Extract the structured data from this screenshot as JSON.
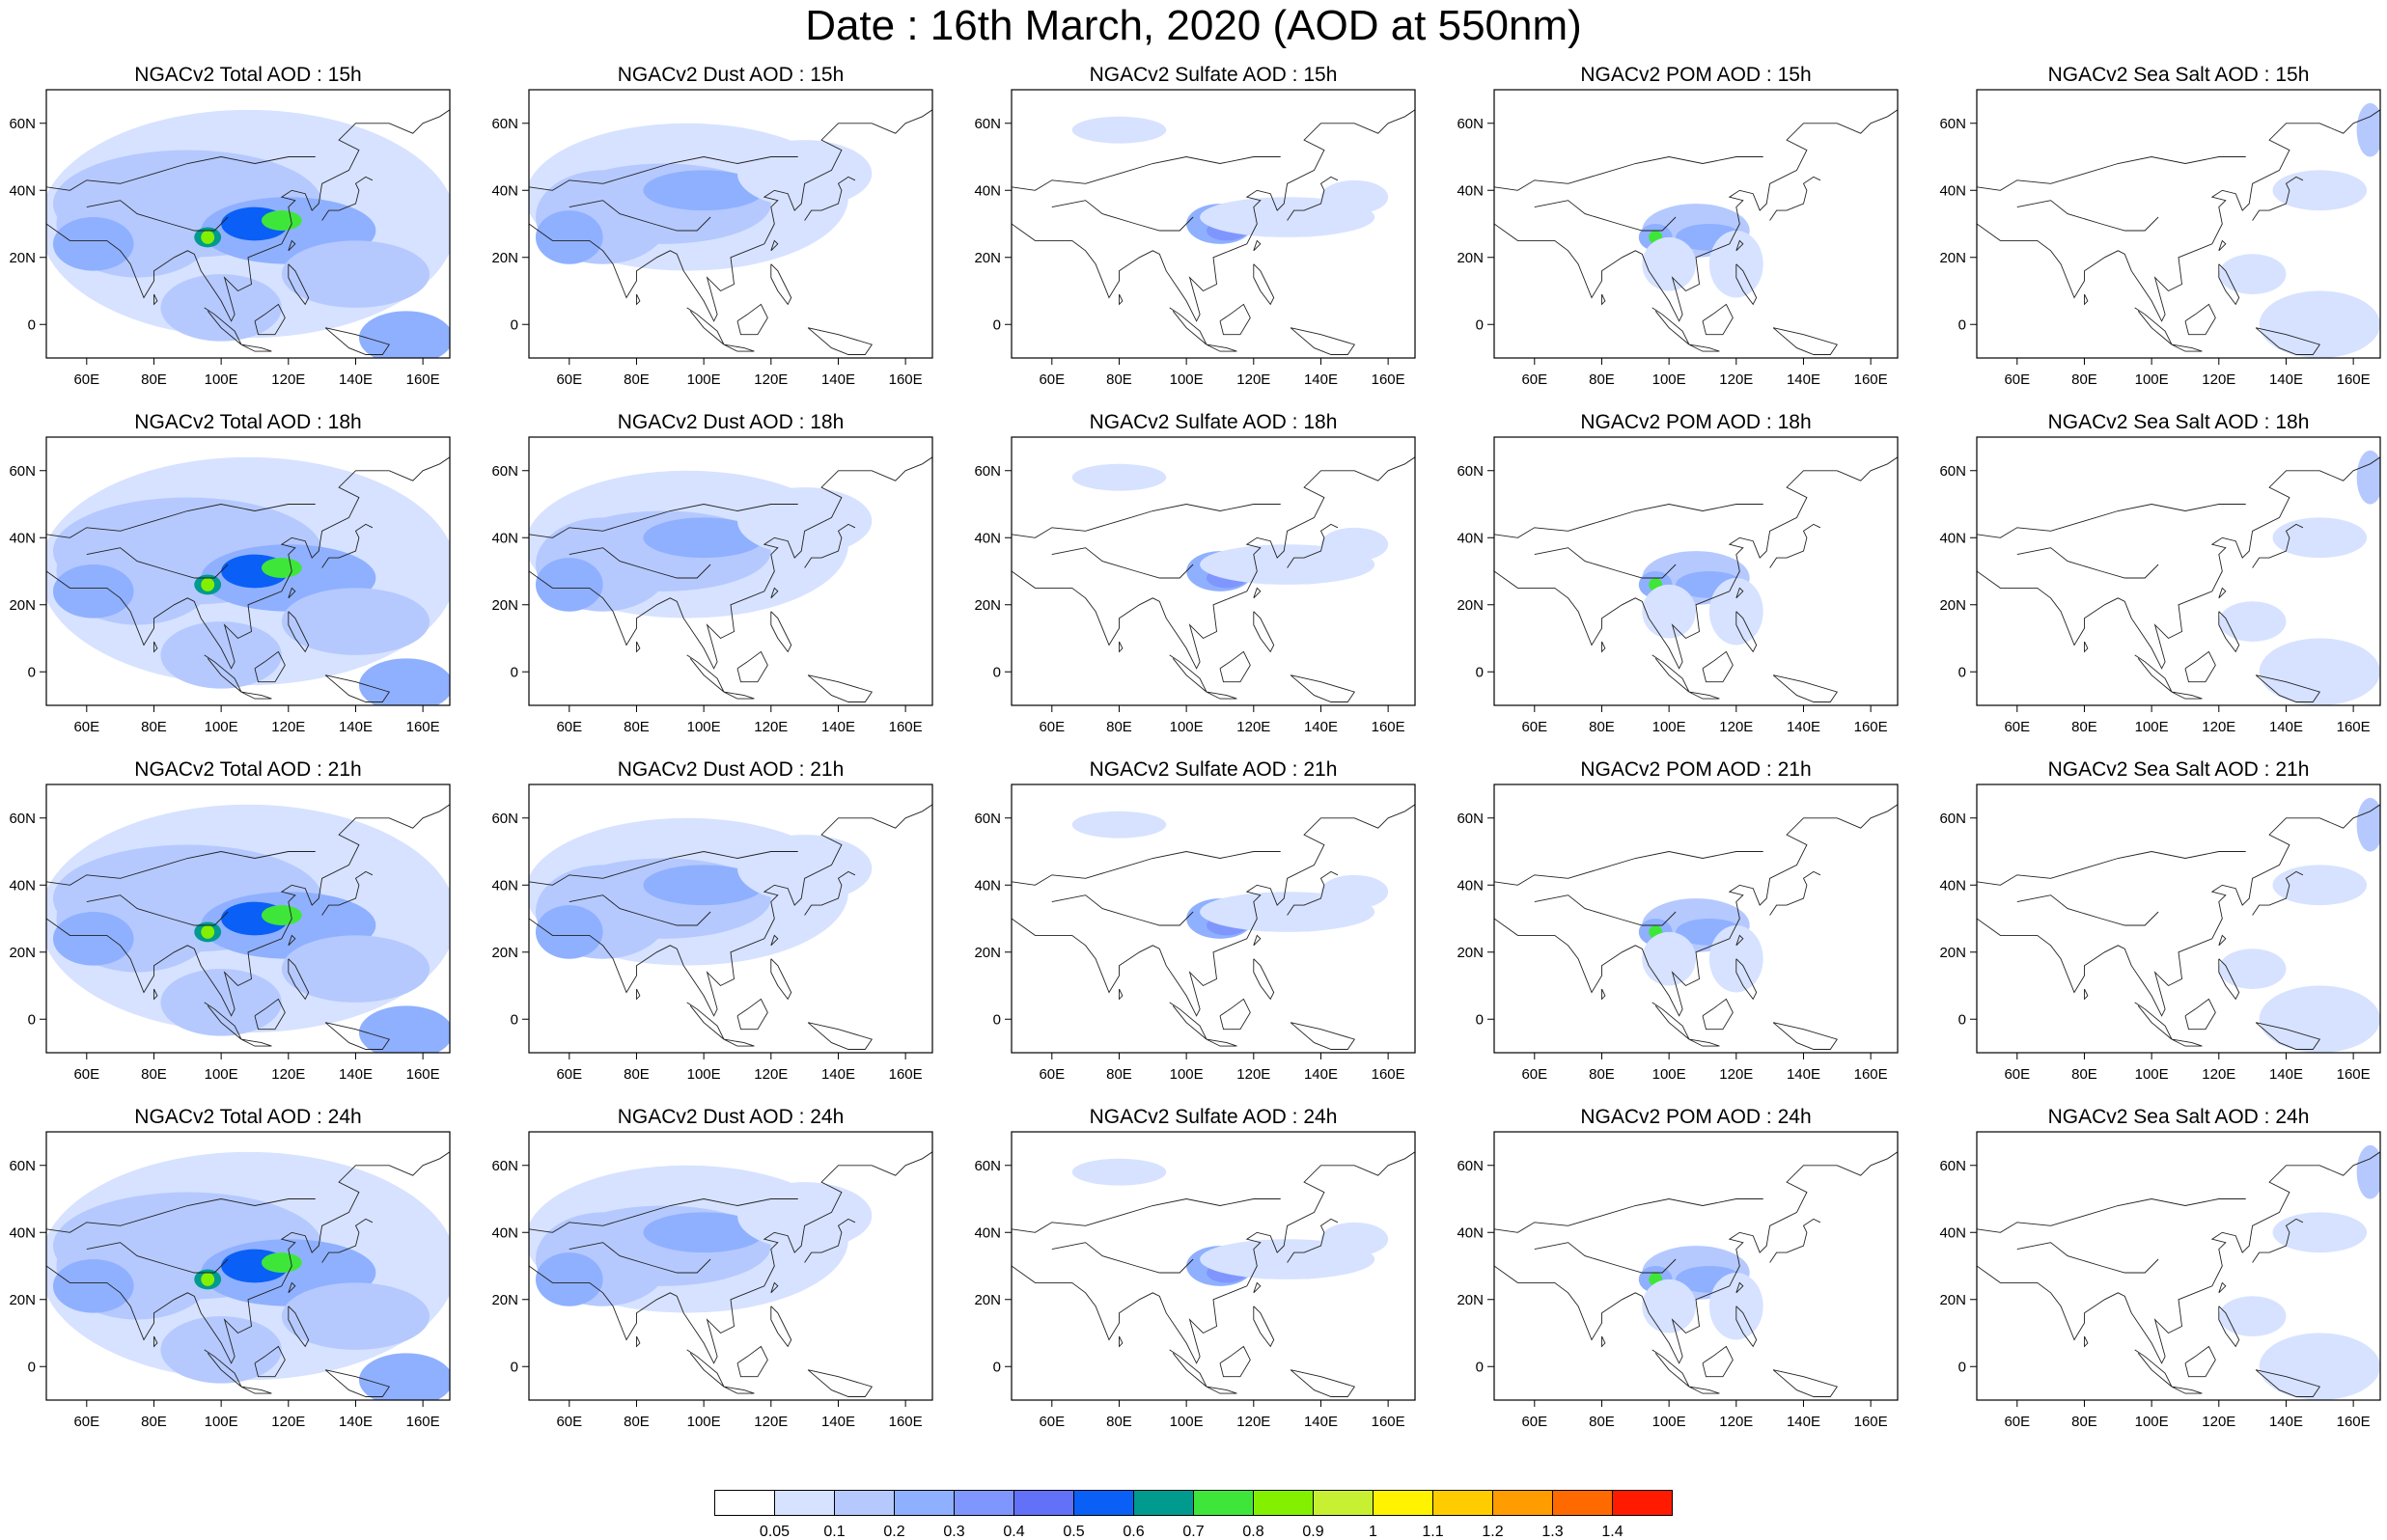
{
  "figure": {
    "title": "Date : 16th March, 2020 (AOD at 550nm)"
  },
  "axes": {
    "lon_ticks": [
      "60E",
      "80E",
      "100E",
      "120E",
      "140E",
      "160E"
    ],
    "lat_ticks": [
      "60N",
      "40N",
      "20N",
      "0"
    ]
  },
  "panels": [
    {
      "title": "NGACv2 Total AOD : 15h",
      "species": "total",
      "hour": 15
    },
    {
      "title": "NGACv2 Dust AOD : 15h",
      "species": "dust",
      "hour": 15
    },
    {
      "title": "NGACv2 Sulfate AOD : 15h",
      "species": "sulfate",
      "hour": 15
    },
    {
      "title": "NGACv2 POM AOD : 15h",
      "species": "pom",
      "hour": 15
    },
    {
      "title": "NGACv2 Sea Salt AOD : 15h",
      "species": "seasalt",
      "hour": 15
    },
    {
      "title": "NGACv2 Total AOD : 18h",
      "species": "total",
      "hour": 18
    },
    {
      "title": "NGACv2 Dust AOD : 18h",
      "species": "dust",
      "hour": 18
    },
    {
      "title": "NGACv2 Sulfate AOD : 18h",
      "species": "sulfate",
      "hour": 18
    },
    {
      "title": "NGACv2 POM AOD : 18h",
      "species": "pom",
      "hour": 18
    },
    {
      "title": "NGACv2 Sea Salt AOD : 18h",
      "species": "seasalt",
      "hour": 18
    },
    {
      "title": "NGACv2 Total AOD : 21h",
      "species": "total",
      "hour": 21
    },
    {
      "title": "NGACv2 Dust AOD : 21h",
      "species": "dust",
      "hour": 21
    },
    {
      "title": "NGACv2 Sulfate AOD : 21h",
      "species": "sulfate",
      "hour": 21
    },
    {
      "title": "NGACv2 POM AOD : 21h",
      "species": "pom",
      "hour": 21
    },
    {
      "title": "NGACv2 Sea Salt AOD : 21h",
      "species": "seasalt",
      "hour": 21
    },
    {
      "title": "NGACv2 Total AOD : 24h",
      "species": "total",
      "hour": 24
    },
    {
      "title": "NGACv2 Dust AOD : 24h",
      "species": "dust",
      "hour": 24
    },
    {
      "title": "NGACv2 Sulfate AOD : 24h",
      "species": "sulfate",
      "hour": 24
    },
    {
      "title": "NGACv2 POM AOD : 24h",
      "species": "pom",
      "hour": 24
    },
    {
      "title": "NGACv2 Sea Salt  AOD : 24h",
      "species": "seasalt",
      "hour": 24
    }
  ],
  "colorbar": {
    "labels": [
      "0.05",
      "0.1",
      "0.2",
      "0.3",
      "0.4",
      "0.5",
      "0.6",
      "0.7",
      "0.8",
      "0.9",
      "1",
      "1.1",
      "1.2",
      "1.3",
      "1.4"
    ],
    "colors": [
      "#ffffff",
      "#d6e2ff",
      "#b5c9ff",
      "#8fb0ff",
      "#7f96ff",
      "#6370f8",
      "#0a5ff6",
      "#009a8f",
      "#3ee63a",
      "#83f000",
      "#c8f032",
      "#fff300",
      "#ffcc00",
      "#ff9d00",
      "#ff6a00",
      "#ff1a00"
    ]
  }
}
